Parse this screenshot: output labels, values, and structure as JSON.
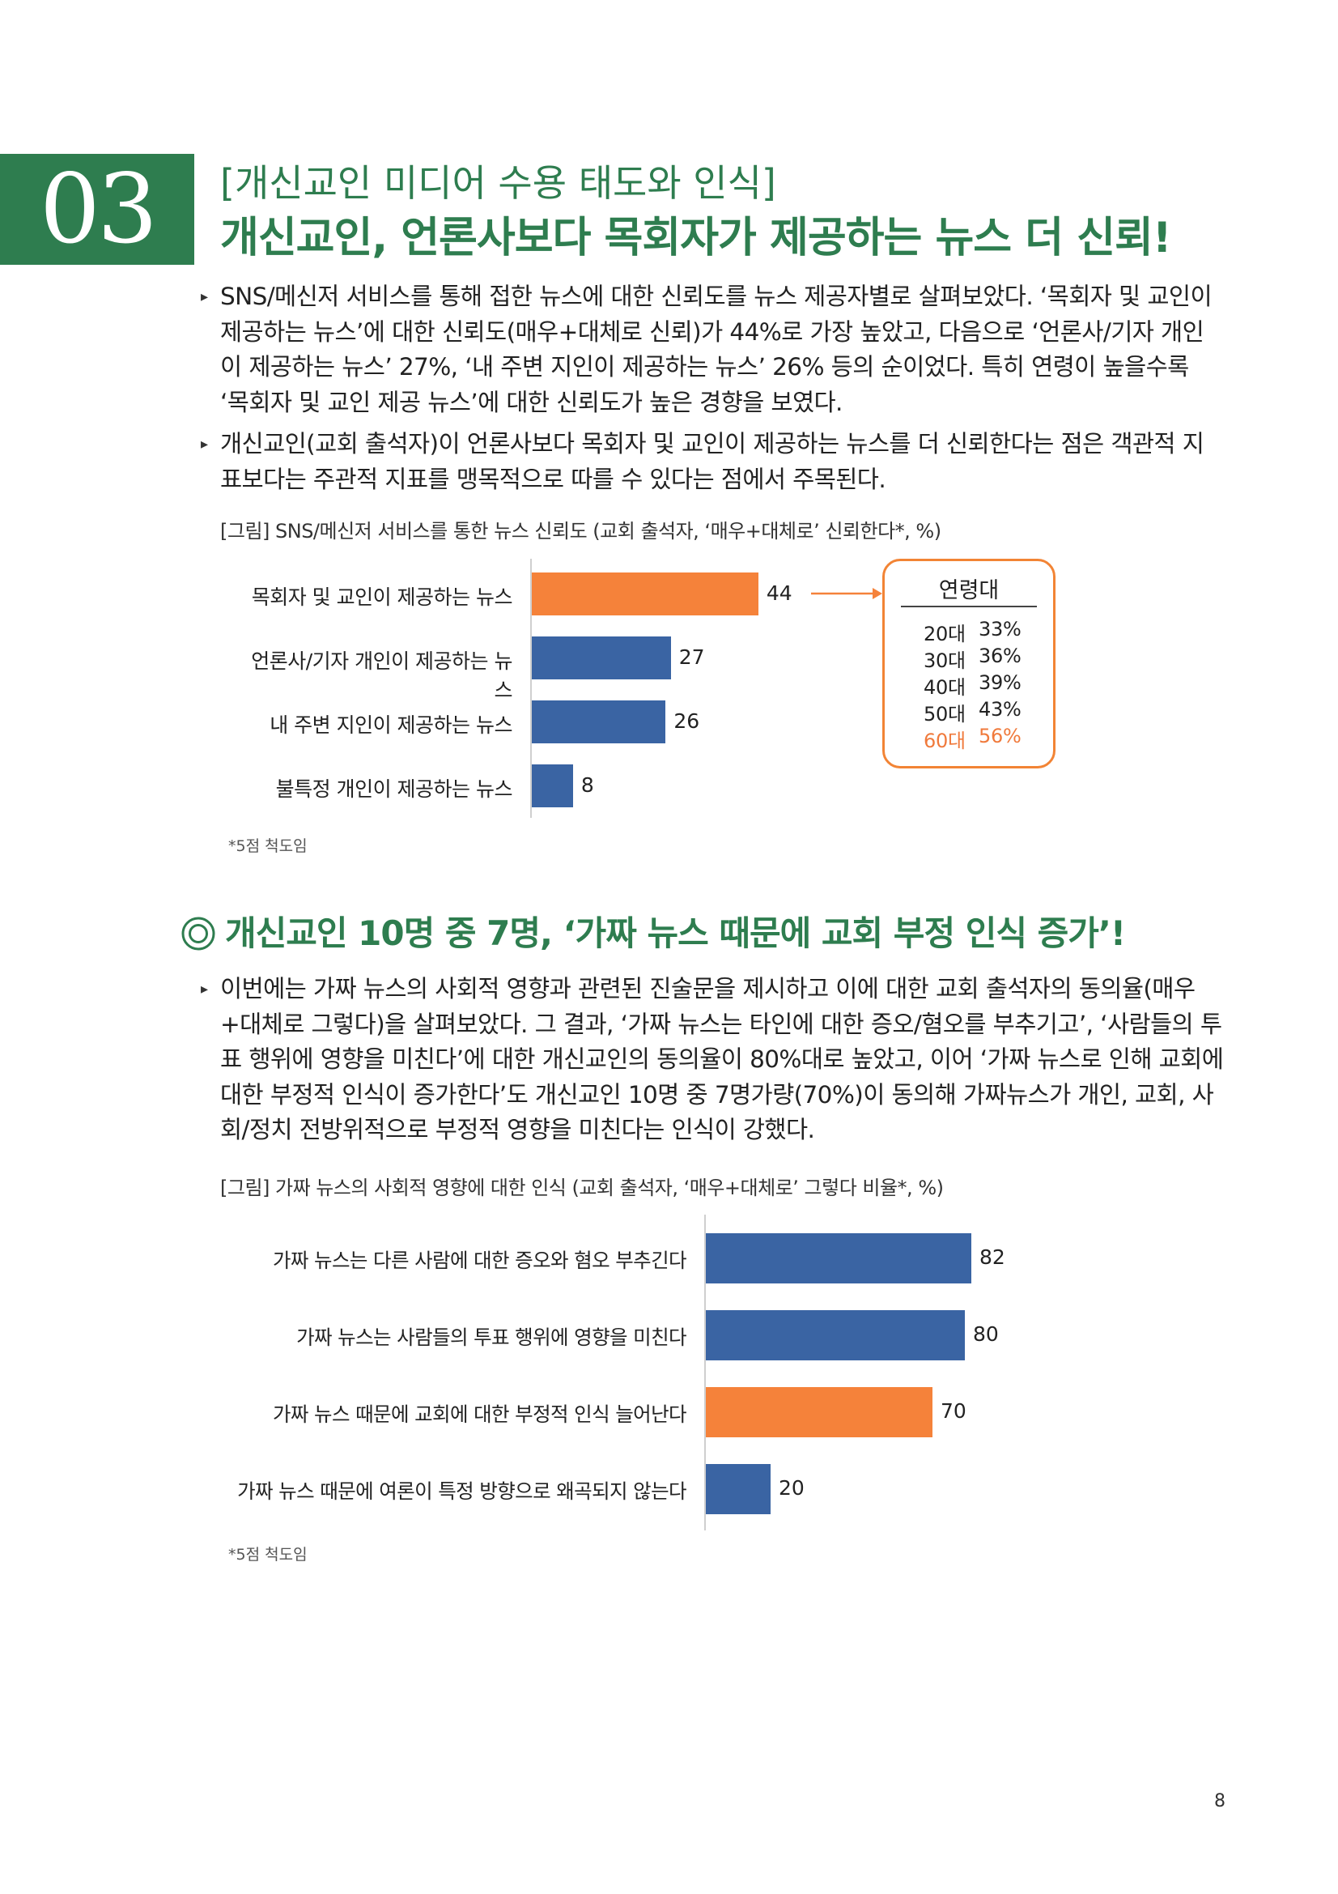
{
  "header": {
    "number": "03",
    "subtitle": "[개신교인 미디어 수용 태도와 인식]",
    "title": "개신교인, 언론사보다 목회자가 제공하는 뉴스 더 신뢰!"
  },
  "paragraphs1": [
    "SNS/메신저 서비스를 통해 접한 뉴스에 대한 신뢰도를 뉴스 제공자별로 살펴보았다. ‘목회자 및 교인이 제공하는 뉴스’에 대한 신뢰도(매우+대체로 신뢰)가 44%로 가장 높았고, 다음으로 ‘언론사/기자 개인이 제공하는 뉴스’ 27%, ‘내 주변 지인이 제공하는 뉴스’ 26% 등의 순이었다. 특히 연령이 높을수록 ‘목회자 및 교인 제공 뉴스’에 대한 신뢰도가 높은 경향을 보였다.",
    "개신교인(교회 출석자)이 언론사보다 목회자 및 교인이 제공하는 뉴스를 더 신뢰한다는 점은 객관적 지표보다는 주관적 지표를 맹목적으로 따를 수 있다는 점에서 주목된다."
  ],
  "figure1": {
    "caption": "[그림] SNS/메신저 서비스를 통한 뉴스 신뢰도 (교회 출석자, ‘매우+대체로’ 신뢰한다*, %)",
    "footnote": "*5점 척도임",
    "age_box": {
      "title": "연령대",
      "rows": [
        {
          "age": "20대",
          "pct": "33%"
        },
        {
          "age": "30대",
          "pct": "36%"
        },
        {
          "age": "40대",
          "pct": "39%"
        },
        {
          "age": "50대",
          "pct": "43%"
        },
        {
          "age": "60대",
          "pct": "56%"
        }
      ]
    }
  },
  "section2": {
    "title": "개신교인 10명 중 7명, ‘가짜 뉴스 때문에 교회 부정 인식 증가’!",
    "paragraph": "이번에는 가짜 뉴스의 사회적 영향과 관련된 진술문을 제시하고 이에 대한 교회 출석자의 동의율(매우+대체로 그렇다)을 살펴보았다. 그 결과, ‘가짜 뉴스는 타인에 대한 증오/혐오를 부추기고’, ‘사람들의 투표 행위에 영향을 미친다’에 대한 개신교인의 동의율이 80%대로 높았고, 이어 ‘가짜 뉴스로 인해 교회에 대한 부정적 인식이 증가한다’도 개신교인 10명 중 7명가량(70%)이 동의해 가짜뉴스가 개인, 교회, 사회/정치 전방위적으로 부정적 영향을 미친다는 인식이 강했다.",
    "figure_caption": "[그림] 가짜 뉴스의 사회적 영향에 대한 인식 (교회 출석자, ‘매우+대체로’ 그렇다 비율*, %)",
    "footnote": "*5점 척도임"
  },
  "chart_data": [
    {
      "type": "bar",
      "orientation": "horizontal",
      "categories": [
        "목회자 및 교인이 제공하는 뉴스",
        "언론사/기자 개인이 제공하는 뉴스",
        "내 주변 지인이 제공하는 뉴스",
        "불특정 개인이 제공하는 뉴스"
      ],
      "values": [
        44,
        27,
        26,
        8
      ],
      "highlight_index": 0,
      "colors": {
        "bar": "#3a64a3",
        "highlight": "#f5823a"
      },
      "xlim": [
        0,
        100
      ]
    },
    {
      "type": "bar",
      "orientation": "horizontal",
      "categories": [
        "가짜 뉴스는 다른 사람에 대한 증오와 혐오 부추긴다",
        "가짜 뉴스는 사람들의 투표 행위에 영향을 미친다",
        "가짜 뉴스 때문에 교회에 대한 부정적 인식 늘어난다",
        "가짜 뉴스 때문에 여론이 특정 방향으로 왜곡되지 않는다"
      ],
      "values": [
        82,
        80,
        70,
        20
      ],
      "highlight_index": 2,
      "colors": {
        "bar": "#3a64a3",
        "highlight": "#f5823a"
      },
      "xlim": [
        0,
        100
      ]
    }
  ],
  "page_number": "8"
}
